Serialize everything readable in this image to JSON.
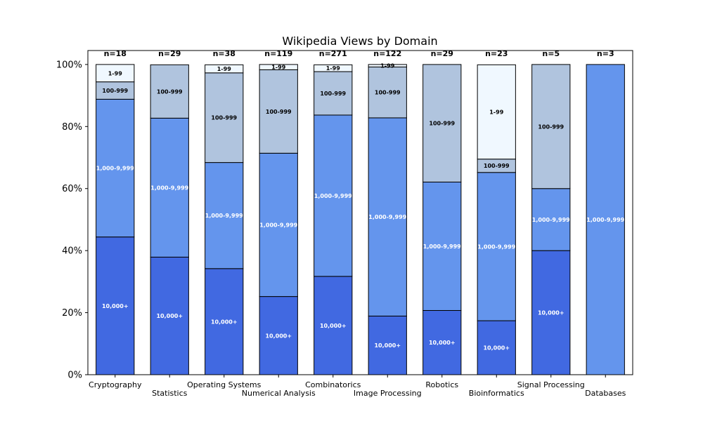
{
  "chart_data": {
    "type": "bar",
    "stacked": true,
    "normalized": true,
    "title": "Wikipedia Views by Domain",
    "xlabel": "",
    "ylabel": "",
    "ylim": [
      0,
      104.5
    ],
    "yticks": [
      "0%",
      "20%",
      "40%",
      "60%",
      "80%",
      "100%"
    ],
    "grid": false,
    "categories": [
      "Cryptography",
      "Statistics",
      "Operating Systems",
      "Numerical Analysis",
      "Combinatorics",
      "Image Processing",
      "Robotics",
      "Bioinformatics",
      "Signal Processing",
      "Databases"
    ],
    "counts": [
      "n=18",
      "n=29",
      "n=38",
      "n=119",
      "n=271",
      "n=122",
      "n=29",
      "n=23",
      "n=5",
      "n=3"
    ],
    "series": [
      {
        "label": "10,000+",
        "color": "#4169e1",
        "text_color": "#ffffff",
        "values": [
          44.4,
          37.9,
          34.2,
          25.2,
          31.7,
          18.9,
          20.7,
          17.4,
          40.0,
          0
        ]
      },
      {
        "label": "1,000-9,999",
        "color": "#6495ed",
        "text_color": "#ffffff",
        "values": [
          44.4,
          44.8,
          34.2,
          46.2,
          52.0,
          63.9,
          41.4,
          47.8,
          20.0,
          100
        ]
      },
      {
        "label": "100-999",
        "color": "#b0c4de",
        "text_color": "#000000",
        "values": [
          5.6,
          17.2,
          28.9,
          26.9,
          14.0,
          16.4,
          37.9,
          4.3,
          40.0,
          0
        ]
      },
      {
        "label": "1-99",
        "color": "#f0f8ff",
        "text_color": "#000000",
        "values": [
          5.6,
          0,
          2.6,
          1.7,
          2.2,
          0.8,
          0,
          30.4,
          0,
          0
        ]
      }
    ]
  }
}
